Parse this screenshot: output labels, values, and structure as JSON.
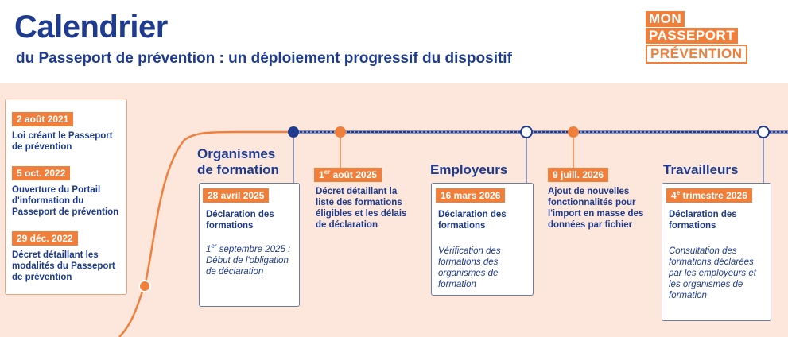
{
  "header": {
    "title": "Calendrier",
    "subtitle": "du Passeport de prévention : un déploiement progressif du dispositif"
  },
  "logo": {
    "line1": "MON",
    "line2": "PASSEPORT",
    "line3": "PRÉVENTION"
  },
  "colors": {
    "navy": "#1e3b8f",
    "orange": "#f07f3c",
    "band": "#fde7dc"
  },
  "history": [
    {
      "date": "2 août 2021",
      "text": "Loi créant le Passeport de prévention"
    },
    {
      "date": "5 oct. 2022",
      "text": "Ouverture du Portail d'information du Passeport de prévention"
    },
    {
      "date": "29 déc. 2022",
      "text": "Décret détaillant les modalités du Passeport de prévention"
    }
  ],
  "organismes": {
    "heading_line1": "Organismes",
    "heading_line2": "de formation",
    "date": "28 avril 2025",
    "text": "Déclaration des formations",
    "note_sup_pre": "1",
    "note_sup": "er",
    "note": "septembre 2025 : Début de l'obligation de déclaration"
  },
  "decret": {
    "date_num": "1",
    "date_sup": "er",
    "date_rest": "août 2025",
    "text": "Décret détaillant la liste des formations éligibles et les délais de déclaration"
  },
  "employeurs": {
    "heading": "Employeurs",
    "date": "16 mars 2026",
    "text": "Déclaration des formations",
    "note": "Vérification des formations des organismes de formation"
  },
  "ajout": {
    "date": "9 juill. 2026",
    "text": "Ajout de nouvelles fonctionnalités pour l'import en masse des données par fichier"
  },
  "travailleurs": {
    "heading": "Travailleurs",
    "date_num": "4",
    "date_sup": "e",
    "date_rest": "trimestre 2026",
    "text": "Déclaration des formations",
    "note": "Consultation des formations déclarées par les employeurs et les organismes de formation"
  }
}
